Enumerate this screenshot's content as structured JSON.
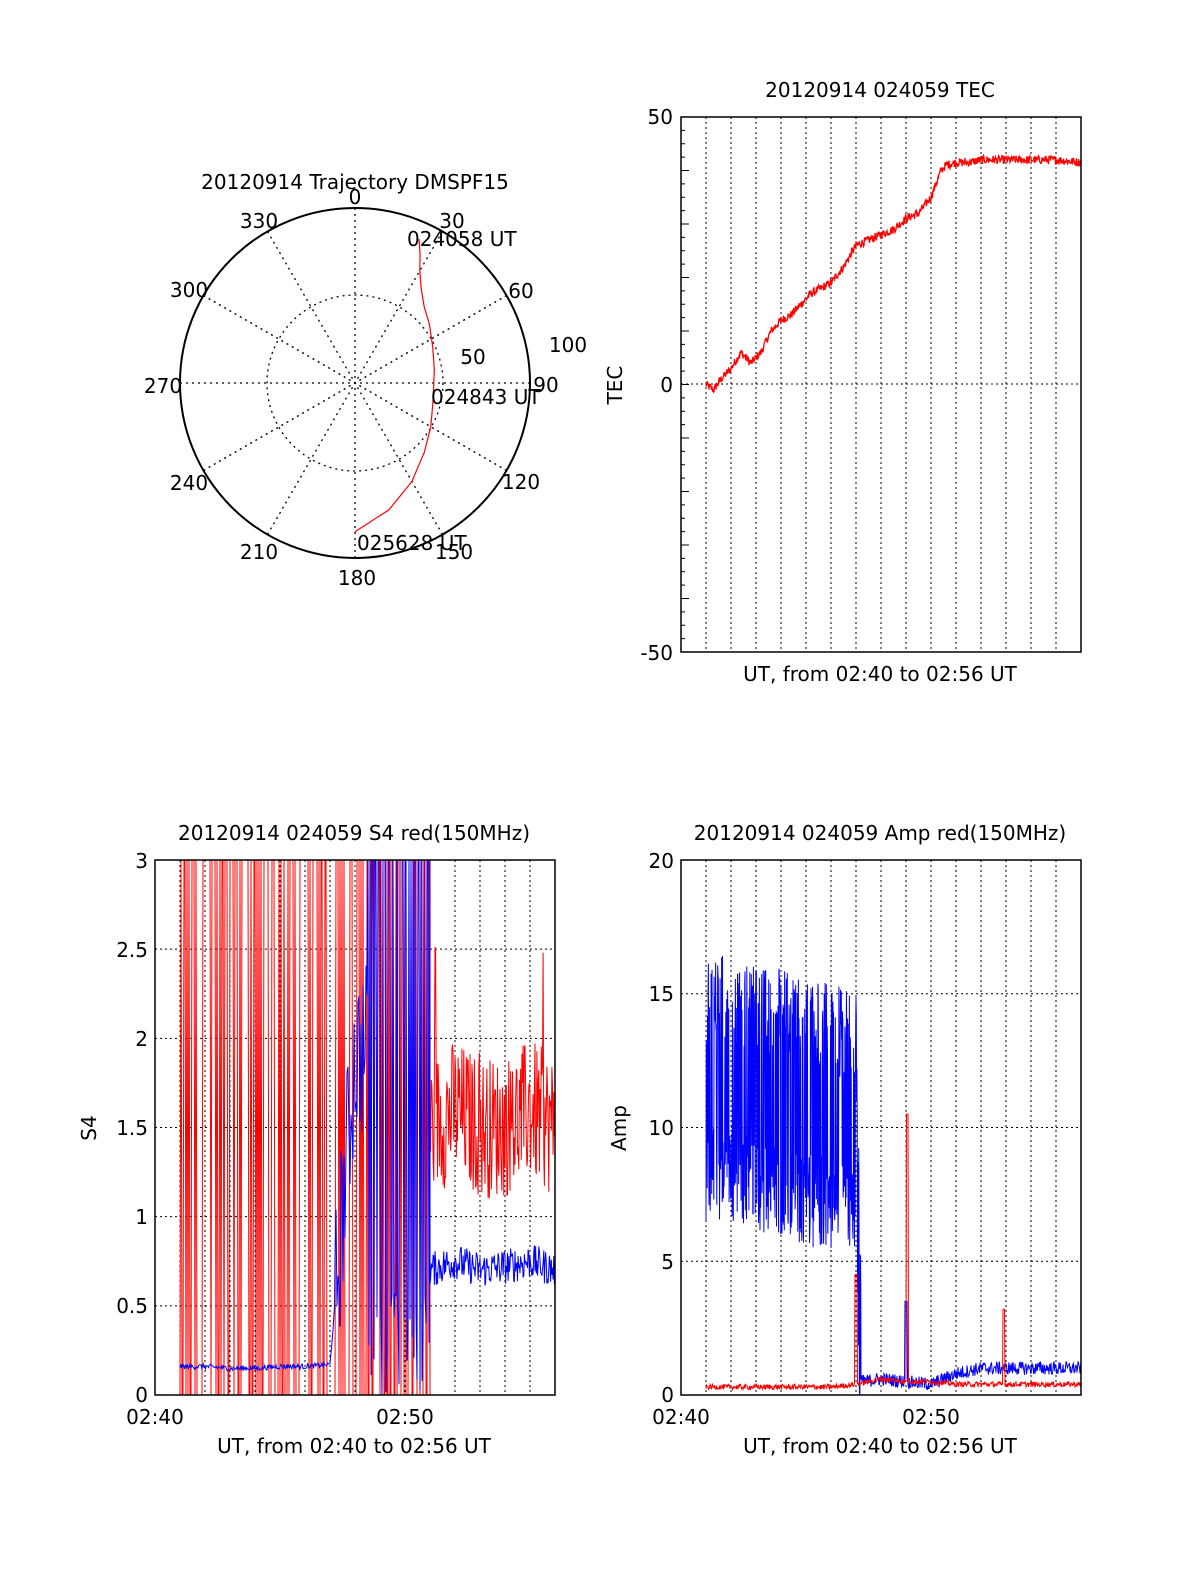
{
  "polar": {
    "title": "20120914 Trajectory DMSPF15",
    "angle_labels": [
      "0",
      "30",
      "60",
      "90",
      "120",
      "150",
      "180",
      "210",
      "240",
      "270",
      "300",
      "330"
    ],
    "radius_labels": [
      "50",
      "100"
    ],
    "annotations": [
      "024058 UT",
      "024843 UT",
      "025628 UT"
    ],
    "trajectory_color": "#ff0000"
  },
  "tec": {
    "title": "20120914 024059 TEC",
    "ylabel": "TEC",
    "xlabel": "UT, from 02:40 to 02:56 UT",
    "yticks": [
      "50",
      "0",
      "-50"
    ]
  },
  "s4": {
    "title": "20120914 024059 S4 red(150MHz)",
    "ylabel": "S4",
    "xlabel": "UT, from 02:40 to 02:56 UT",
    "yticks": [
      "0",
      "0.5",
      "1",
      "1.5",
      "2",
      "2.5",
      "3"
    ],
    "xticks": [
      "02:40",
      "02:50"
    ]
  },
  "amp": {
    "title": "20120914 024059 Amp red(150MHz)",
    "ylabel": "Amp",
    "xlabel": "UT, from 02:40 to 02:56 UT",
    "yticks": [
      "0",
      "5",
      "10",
      "15",
      "20"
    ],
    "xticks": [
      "02:40",
      "02:50"
    ]
  },
  "chart_data": [
    {
      "type": "line",
      "subtype": "polar",
      "title": "20120914 Trajectory DMSPF15",
      "rlim": [
        0,
        100
      ],
      "series": [
        {
          "color": "#ff0000",
          "points_azimuth_deg": [
            24,
            27,
            30,
            35,
            42,
            52,
            65,
            80,
            92,
            105,
            120,
            135,
            150,
            165,
            180
          ],
          "points_radius": [
            90,
            82,
            74,
            66,
            59,
            54,
            49,
            46,
            45,
            46,
            50,
            56,
            65,
            75,
            85
          ]
        }
      ]
    },
    {
      "type": "line",
      "title": "20120914 024059 TEC",
      "ylabel": "TEC",
      "xlabel": "UT, from 02:40 to 02:56 UT",
      "ylim": [
        -50,
        50
      ],
      "xlim_minutes": [
        0,
        16
      ],
      "series": [
        {
          "color": "#ff0000",
          "x_minutes": [
            1.0,
            1.3,
            1.6,
            2.0,
            2.4,
            2.8,
            3.2,
            3.6,
            4.0,
            4.4,
            4.8,
            5.2,
            5.6,
            6.0,
            6.5,
            7.0,
            7.5,
            8.0,
            8.5,
            9.0,
            9.5,
            10.0,
            10.4,
            10.6,
            11.0,
            11.5,
            12.0,
            13.0,
            14.0,
            15.0,
            16.0
          ],
          "y": [
            0,
            -1,
            1,
            3,
            6,
            4,
            6,
            10,
            12,
            13,
            15,
            17,
            18,
            19,
            22,
            26,
            27,
            28,
            29,
            31,
            32,
            35,
            40,
            41,
            41.5,
            41.5,
            42,
            42,
            42,
            42,
            41.5
          ]
        }
      ]
    },
    {
      "type": "line",
      "title": "20120914 024059 S4 red(150MHz)",
      "ylabel": "S4",
      "xlabel": "UT, from 02:40 to 02:56 UT",
      "ylim": [
        0,
        3
      ],
      "xlim_minutes": [
        0,
        16
      ],
      "series": [
        {
          "color": "#ff0000",
          "x_minutes": [
            1,
            2,
            3,
            4,
            5,
            6,
            7,
            8,
            9,
            10,
            11,
            12,
            13,
            14,
            15,
            16
          ],
          "y": [
            3,
            3,
            3,
            3,
            3,
            3,
            3,
            3,
            3,
            3,
            1.5,
            1.6,
            1.5,
            1.5,
            1.6,
            1.5
          ]
        },
        {
          "color": "#0000ff",
          "x_minutes": [
            1,
            2,
            3,
            4,
            5,
            6,
            7,
            8,
            9,
            10,
            11,
            12,
            13,
            14,
            15,
            16
          ],
          "y": [
            0.16,
            0.16,
            0.15,
            0.15,
            0.16,
            0.16,
            0.17,
            1.9,
            2.0,
            3,
            0.7,
            0.75,
            0.7,
            0.72,
            0.75,
            0.7
          ]
        }
      ]
    },
    {
      "type": "line",
      "title": "20120914 024059 Amp red(150MHz)",
      "ylabel": "Amp",
      "xlabel": "UT, from 02:40 to 02:56 UT",
      "ylim": [
        0,
        20
      ],
      "xlim_minutes": [
        0,
        16
      ],
      "series": [
        {
          "color": "#0000ff",
          "x_minutes": [
            1,
            2,
            3,
            4,
            5,
            6,
            7,
            7.2,
            8,
            9,
            10,
            11,
            12,
            13,
            14,
            15,
            16
          ],
          "y": [
            11.5,
            11.5,
            11.0,
            11.0,
            10.5,
            10.5,
            10.0,
            0.5,
            0.6,
            0.5,
            0.4,
            0.8,
            1.0,
            1.0,
            1.0,
            1.0,
            1.0
          ]
        },
        {
          "color": "#ff0000",
          "x_minutes": [
            1,
            2,
            3,
            4,
            5,
            6,
            7,
            8,
            9,
            10,
            11,
            12,
            13,
            14,
            15,
            16
          ],
          "y": [
            0.2,
            0.2,
            0.2,
            0.2,
            0.2,
            0.2,
            0.3,
            0.5,
            0.4,
            0.4,
            0.3,
            0.3,
            0.3,
            0.3,
            0.3,
            0.3
          ]
        }
      ]
    }
  ]
}
